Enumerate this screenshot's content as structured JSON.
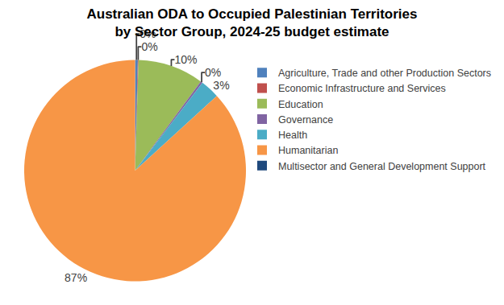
{
  "chart_data": {
    "type": "pie",
    "title": "Australian ODA to Occupied Palestinian Territories\nby Sector Group, 2024-25 budget estimate",
    "categories": [
      "Agriculture, Trade and other Production Sectors",
      "Economic Infrastructure and Services",
      "Education",
      "Governance",
      "Health",
      "Humanitarian",
      "Multisector and General Development Support"
    ],
    "values": [
      0.4,
      0.1,
      9.6,
      0.3,
      2.8,
      86.8,
      0
    ],
    "value_labels": [
      "0%",
      "0%",
      "10%",
      "0%",
      "3%",
      "87%",
      null
    ],
    "colors": [
      "#4f81bd",
      "#c0504d",
      "#9bbb59",
      "#8064a2",
      "#4bacc6",
      "#f79646",
      "#1f497d"
    ],
    "data_labels": true,
    "legend": "right"
  }
}
